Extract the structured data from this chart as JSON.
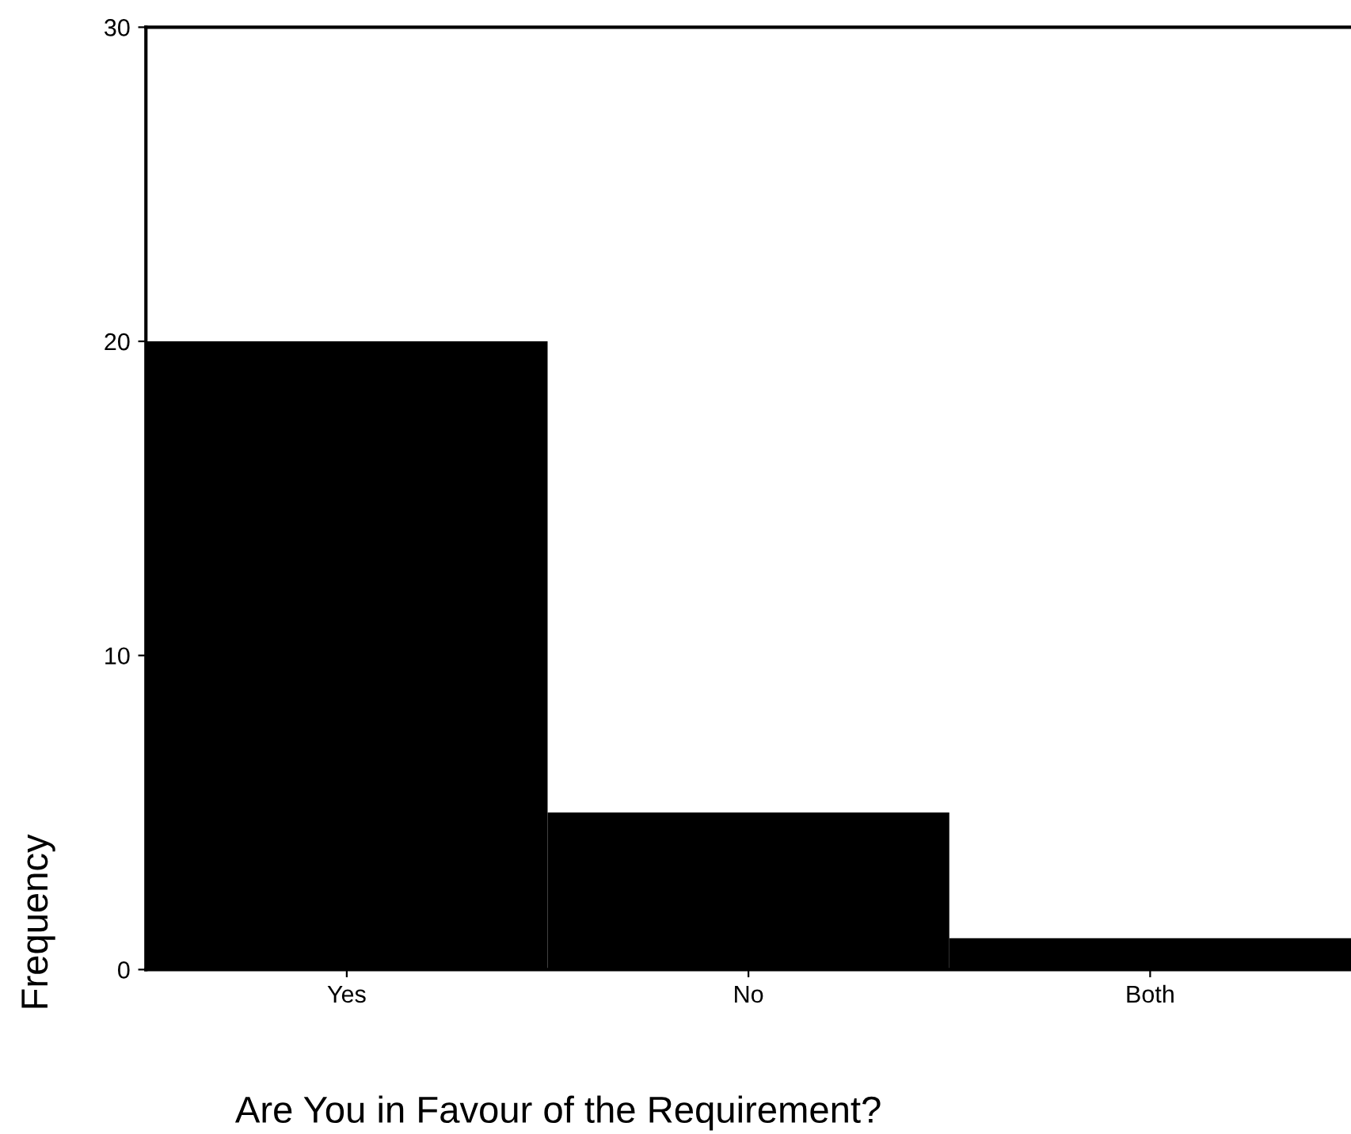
{
  "chart_data": {
    "type": "bar",
    "categories": [
      "Yes",
      "No",
      "Both"
    ],
    "values": [
      20,
      5,
      1
    ],
    "color": "#000000",
    "xlabel": "Are You in Favour of the Requirement?",
    "ylabel": "Frequency",
    "ylim": [
      0,
      30
    ],
    "yticks": [
      0,
      10,
      20,
      30
    ],
    "grid": false,
    "legend": false
  }
}
